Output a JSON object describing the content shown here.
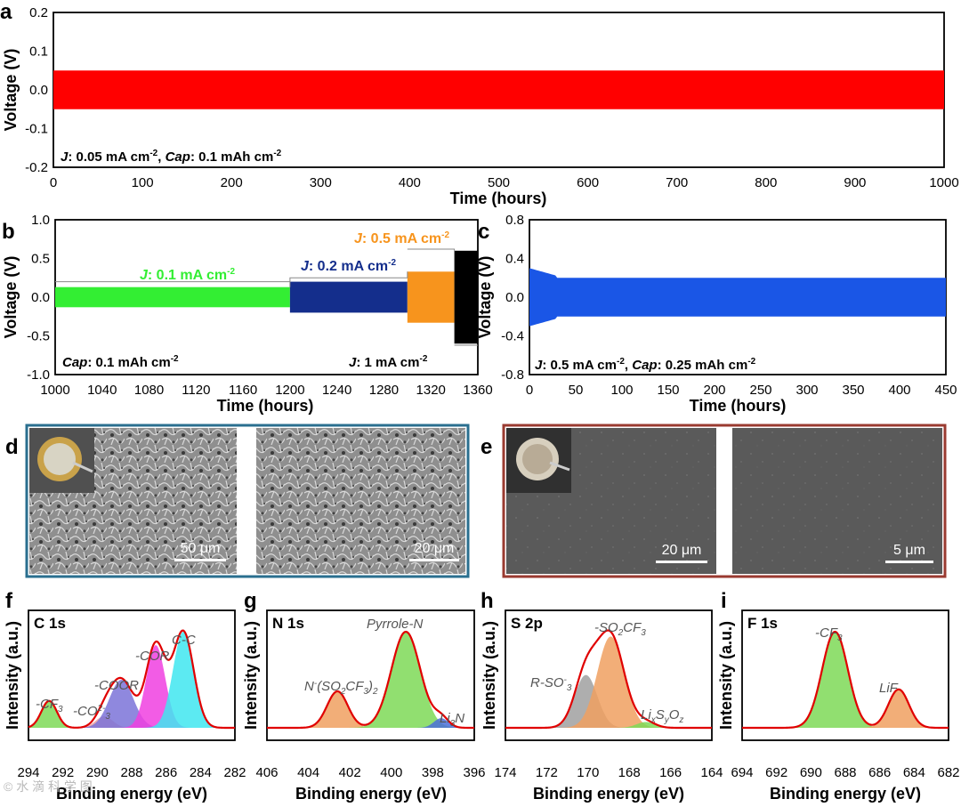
{
  "chart_data": [
    {
      "panel": "a",
      "type": "line",
      "xlabel": "Time (hours)",
      "ylabel": "Voltage (V)",
      "xlim": [
        0,
        1000
      ],
      "ylim": [
        -0.2,
        0.2
      ],
      "xticks": [
        "0",
        "100",
        "200",
        "300",
        "400",
        "500",
        "600",
        "700",
        "800",
        "900",
        "1000"
      ],
      "yticks": [
        "0.2",
        "0.1",
        "0.0",
        "-0.1",
        "-0.2"
      ],
      "series": [
        {
          "name": "cycling",
          "color": "#ff0000",
          "amplitude": 0.05
        }
      ],
      "annotation": {
        "j_label": "J",
        "j_text": ": 0.05 mA cm",
        "j_sup": "-2",
        "cap_label": "Cap",
        "cap_text": ": 0.1 mAh cm",
        "cap_sup": "-2"
      }
    },
    {
      "panel": "b",
      "type": "line",
      "xlabel": "Time (hours)",
      "ylabel": "Voltage (V)",
      "xlim": [
        1000,
        1360
      ],
      "ylim": [
        -1.0,
        1.0
      ],
      "xticks": [
        "1000",
        "1040",
        "1080",
        "1120",
        "1160",
        "1200",
        "1240",
        "1280",
        "1320",
        "1360"
      ],
      "yticks": [
        "1.0",
        "0.5",
        "0.0",
        "-0.5",
        "-1.0"
      ],
      "series": [
        {
          "name": "0.1 mA cm-2",
          "color": "#33ee33",
          "x_range": [
            1000,
            1200
          ],
          "amplitude": 0.13
        },
        {
          "name": "0.2 mA cm-2",
          "color": "#142e8c",
          "x_range": [
            1200,
            1300
          ],
          "amplitude": 0.2
        },
        {
          "name": "0.5 mA cm-2",
          "color": "#f7941d",
          "x_range": [
            1300,
            1340
          ],
          "amplitude": 0.33
        },
        {
          "name": "1 mA cm-2",
          "color": "#000000",
          "x_range": [
            1340,
            1360
          ],
          "amplitude": 0.6
        }
      ],
      "labels": [
        {
          "pre": "J",
          "text": ": 0.1 mA cm",
          "sup": "-2",
          "color": "#33ee33"
        },
        {
          "pre": "J",
          "text": ": 0.2 mA cm",
          "sup": "-2",
          "color": "#142e8c"
        },
        {
          "pre": "J",
          "text": ": 0.5 mA cm",
          "sup": "-2",
          "color": "#f7941d"
        },
        {
          "pre": "J",
          "text": ": 1 mA cm",
          "sup": "-2",
          "color": "#000000"
        }
      ],
      "cap": {
        "pre": "Cap",
        "text": ": 0.1 mAh cm",
        "sup": "-2"
      }
    },
    {
      "panel": "c",
      "type": "line",
      "xlabel": "Time (hours)",
      "ylabel": "Voltage (V)",
      "xlim": [
        0,
        450
      ],
      "ylim": [
        -0.8,
        0.8
      ],
      "xticks": [
        "0",
        "50",
        "100",
        "150",
        "200",
        "250",
        "300",
        "350",
        "400",
        "450"
      ],
      "yticks": [
        "0.8",
        "0.4",
        "0.0",
        "-0.4",
        "-0.8"
      ],
      "series": [
        {
          "name": "cycling",
          "color": "#1a56e6",
          "amplitude": 0.2
        }
      ],
      "annotation": {
        "j_label": "J",
        "j_text": ": 0.5 mA cm",
        "j_sup": "-2",
        "cap_label": "Cap",
        "cap_text": ": 0.25 mAh cm",
        "cap_sup": "-2"
      }
    },
    {
      "panel": "f",
      "type": "line",
      "title": "C 1s",
      "xlabel": "Binding energy (eV)",
      "ylabel": "Intensity (a.u.)",
      "xlim": [
        294,
        282
      ],
      "xticks": [
        "294",
        "292",
        "290",
        "288",
        "286",
        "284",
        "282"
      ],
      "peaks": [
        {
          "name": "-CF3",
          "center": 292.8,
          "height": 0.28,
          "sigma": 0.45,
          "color": "#7ed957"
        },
        {
          "name": "-CO3",
          "center": 289.6,
          "height": 0.12,
          "sigma": 0.5,
          "color": "#e8a0a0"
        },
        {
          "name": "-COOR",
          "center": 288.6,
          "height": 0.5,
          "sigma": 0.7,
          "color": "#7b73d8"
        },
        {
          "name": "-COR",
          "center": 286.6,
          "height": 0.86,
          "sigma": 0.55,
          "color": "#f040e0"
        },
        {
          "name": "C-C",
          "center": 285.0,
          "height": 1.0,
          "sigma": 0.6,
          "color": "#40e6f0"
        }
      ],
      "labels": [
        "-CF",
        "-CO",
        "-COOR",
        "-COR",
        "C-C"
      ]
    },
    {
      "panel": "g",
      "type": "line",
      "title": "N 1s",
      "xlabel": "Binding energy (eV)",
      "ylabel": "Intensity (a.u.)",
      "xlim": [
        406,
        396
      ],
      "xticks": [
        "406",
        "404",
        "402",
        "400",
        "398",
        "396"
      ],
      "peaks": [
        {
          "name": "N-(SO2CF3)2",
          "center": 402.6,
          "height": 0.38,
          "sigma": 0.5,
          "color": "#f0a060"
        },
        {
          "name": "Pyrrole-N",
          "center": 399.3,
          "height": 1.0,
          "sigma": 0.7,
          "color": "#7ed957"
        },
        {
          "name": "Li3N",
          "center": 397.6,
          "height": 0.1,
          "sigma": 0.35,
          "color": "#4a6fd8"
        }
      ],
      "labels": [
        "N",
        "(SO",
        "CF",
        "Pyrrole-N",
        "Li",
        "N"
      ]
    },
    {
      "panel": "h",
      "type": "line",
      "title": "S 2p",
      "xlabel": "Binding energy (eV)",
      "ylabel": "Intensity (a.u.)",
      "xlim": [
        174,
        164
      ],
      "xticks": [
        "174",
        "172",
        "170",
        "168",
        "166",
        "164"
      ],
      "peaks": [
        {
          "name": "R-SO3",
          "center": 170.1,
          "height": 0.55,
          "sigma": 0.55,
          "color": "#a0a0a0"
        },
        {
          "name": "-SO2CF3",
          "center": 168.9,
          "height": 0.95,
          "sigma": 0.65,
          "color": "#f0a060"
        },
        {
          "name": "LixSyOz",
          "center": 167.2,
          "height": 0.06,
          "sigma": 0.45,
          "color": "#7ed957"
        }
      ],
      "labels": [
        "R-SO",
        "-SO",
        "CF",
        "Li",
        "S",
        "O"
      ]
    },
    {
      "panel": "i",
      "type": "line",
      "title": "F 1s",
      "xlabel": "Binding energy (eV)",
      "ylabel": "Intensity (a.u.)",
      "xlim": [
        694,
        682
      ],
      "xticks": [
        "694",
        "692",
        "690",
        "688",
        "686",
        "684",
        "682"
      ],
      "peaks": [
        {
          "name": "-CF3",
          "center": 688.6,
          "height": 1.0,
          "sigma": 0.75,
          "color": "#7ed957"
        },
        {
          "name": "LiF",
          "center": 684.9,
          "height": 0.4,
          "sigma": 0.6,
          "color": "#f0a060"
        }
      ],
      "labels": [
        "-CF",
        "LiF"
      ]
    }
  ],
  "panel_letters": [
    "a",
    "b",
    "c",
    "d",
    "e",
    "f",
    "g",
    "h",
    "i"
  ],
  "sem": {
    "d_scale_left": "50 μm",
    "d_scale_right": "20 μm",
    "e_scale_left": "20 μm",
    "e_scale_right": "5 μm",
    "d_border": "#2a6f8f",
    "e_border": "#9a3a30"
  },
  "watermark": "© 水 滴 科 学 图"
}
